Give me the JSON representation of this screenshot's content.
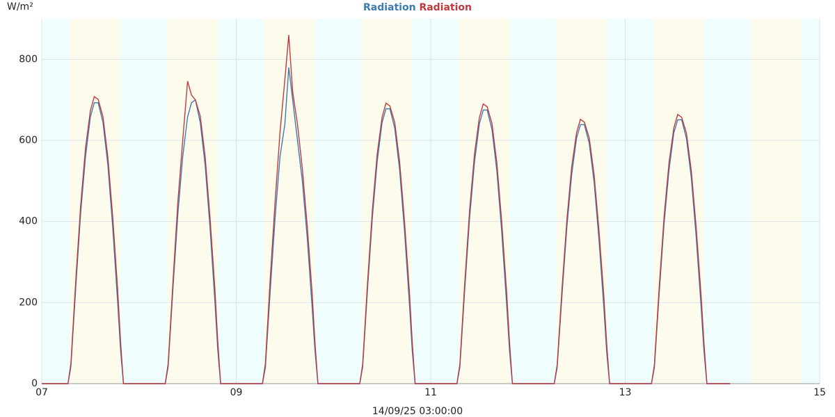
{
  "chart_data": {
    "type": "line",
    "title_parts": "series",
    "y_label": "W/m²",
    "x_label": "14/09/25 03:00:00",
    "xlim": [
      7,
      15
    ],
    "xticks": [
      {
        "value": 7,
        "label": "07"
      },
      {
        "value": 9,
        "label": "09"
      },
      {
        "value": 11,
        "label": "11"
      },
      {
        "value": 13,
        "label": "13"
      },
      {
        "value": 15,
        "label": "15"
      }
    ],
    "ylim": [
      0,
      900
    ],
    "yticks": [
      0,
      200,
      400,
      600,
      800
    ],
    "grid": true,
    "night_color": "#effdfd",
    "day_color": "#fdfcec",
    "day_bands": [
      [
        7.29,
        7.81
      ],
      [
        8.29,
        8.81
      ],
      [
        9.29,
        9.81
      ],
      [
        10.29,
        10.81
      ],
      [
        11.29,
        11.81
      ],
      [
        12.29,
        12.81
      ],
      [
        13.29,
        13.81
      ],
      [
        14.29,
        14.81
      ]
    ],
    "x": [
      7,
      7.27,
      7.3,
      7.35,
      7.4,
      7.45,
      7.5,
      7.54,
      7.58,
      7.63,
      7.68,
      7.73,
      7.78,
      7.81,
      7.84,
      8.27,
      8.3,
      8.35,
      8.4,
      8.45,
      8.5,
      8.54,
      8.58,
      8.63,
      8.68,
      8.73,
      8.78,
      8.81,
      8.84,
      9.27,
      9.3,
      9.35,
      9.4,
      9.45,
      9.5,
      9.54,
      9.58,
      9.63,
      9.68,
      9.73,
      9.78,
      9.81,
      9.84,
      10.27,
      10.3,
      10.35,
      10.4,
      10.45,
      10.5,
      10.54,
      10.58,
      10.63,
      10.68,
      10.73,
      10.78,
      10.81,
      10.84,
      11.27,
      11.3,
      11.35,
      11.4,
      11.45,
      11.5,
      11.54,
      11.58,
      11.63,
      11.68,
      11.73,
      11.78,
      11.81,
      11.84,
      12.27,
      12.3,
      12.35,
      12.4,
      12.45,
      12.5,
      12.54,
      12.58,
      12.63,
      12.68,
      12.73,
      12.78,
      12.81,
      12.84,
      13.27,
      13.3,
      13.35,
      13.4,
      13.45,
      13.5,
      13.54,
      13.58,
      13.63,
      13.68,
      13.73,
      13.78,
      13.81,
      13.84,
      14.08
    ],
    "series": [
      {
        "name": "Radiation",
        "color": "#3b7bb4",
        "values": [
          0,
          0,
          42,
          238,
          420,
          560,
          658,
          693,
          693,
          644,
          539,
          385,
          203,
          84,
          0,
          0,
          42,
          238,
          420,
          560,
          658,
          693,
          700,
          644,
          539,
          385,
          203,
          84,
          0,
          0,
          40,
          230,
          410,
          560,
          640,
          780,
          700,
          600,
          500,
          360,
          190,
          80,
          0,
          0,
          41,
          233,
          411,
          548,
          644,
          678,
          678,
          630,
          527,
          377,
          199,
          82,
          0,
          0,
          41,
          232,
          409,
          546,
          641,
          675,
          675,
          627,
          525,
          375,
          198,
          82,
          0,
          0,
          39,
          219,
          387,
          516,
          606,
          639,
          639,
          593,
          497,
          355,
          187,
          77,
          0,
          0,
          39,
          224,
          395,
          526,
          619,
          651,
          651,
          605,
          507,
          362,
          191,
          79,
          0,
          0
        ]
      },
      {
        "name": "Radiation",
        "color": "#c0393f",
        "values": [
          0,
          0,
          50,
          255,
          439,
          581,
          673,
          708,
          701,
          658,
          559,
          411,
          234,
          106,
          0,
          0,
          50,
          255,
          450,
          600,
          746,
          712,
          700,
          660,
          560,
          410,
          234,
          106,
          0,
          0,
          50,
          260,
          450,
          620,
          750,
          860,
          720,
          640,
          530,
          390,
          225,
          100,
          0,
          0,
          48,
          249,
          429,
          567,
          657,
          692,
          685,
          644,
          547,
          401,
          228,
          104,
          0,
          0,
          48,
          248,
          428,
          566,
          656,
          690,
          683,
          642,
          545,
          400,
          228,
          104,
          0,
          0,
          46,
          235,
          404,
          535,
          619,
          652,
          645,
          606,
          515,
          378,
          215,
          98,
          0,
          0,
          46,
          239,
          412,
          544,
          631,
          664,
          657,
          618,
          525,
          385,
          219,
          100,
          0,
          0
        ]
      }
    ]
  }
}
